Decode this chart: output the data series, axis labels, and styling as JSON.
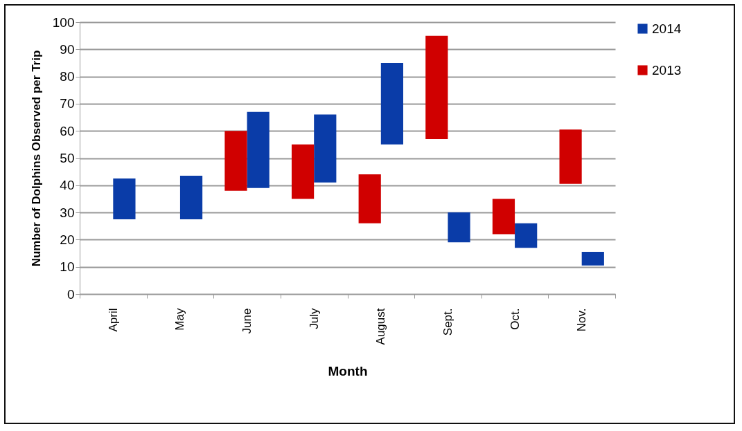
{
  "chart_data": {
    "type": "bar",
    "ylabel": "Number of Dolphins Observed per Trip",
    "xlabel": "Month",
    "categories": [
      "April",
      "May",
      "June",
      "July",
      "August",
      "Sept.",
      "Oct.",
      "Nov."
    ],
    "series": [
      {
        "name": "2014",
        "color": "#0a3ca8",
        "base": [
          27.5,
          27.5,
          39,
          41,
          55,
          19,
          17,
          10.5
        ],
        "values": [
          15,
          16,
          28,
          25,
          30,
          11,
          9,
          5
        ]
      },
      {
        "name": "2013",
        "color": "#d00000",
        "base": [
          null,
          null,
          38,
          35,
          26,
          57,
          22,
          40.5
        ],
        "values": [
          null,
          null,
          22,
          20,
          18,
          38,
          13,
          20
        ]
      }
    ],
    "ylim": [
      0,
      100
    ],
    "yticks": [
      0,
      10,
      20,
      30,
      40,
      50,
      60,
      70,
      80,
      90,
      100
    ],
    "grid": "y",
    "legend": "right"
  }
}
